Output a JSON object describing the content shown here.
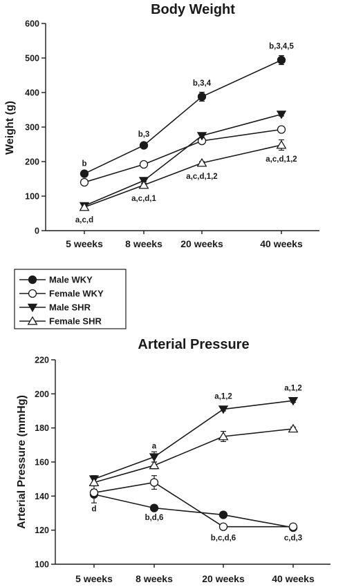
{
  "chart_data": [
    {
      "type": "line",
      "title": "Body Weight",
      "ylabel": "Weight (g)",
      "xlabel": "",
      "categories": [
        "5 weeks",
        "8 weeks",
        "20 weeks",
        "40 weeks"
      ],
      "ylim": [
        0,
        600
      ],
      "yticks": [
        0,
        100,
        200,
        300,
        400,
        500,
        600
      ],
      "grid": false,
      "series": [
        {
          "name": "Male WKY",
          "marker": "filled-circle",
          "values": [
            165,
            247,
            388,
            494
          ],
          "errors": [
            5,
            7,
            13,
            13
          ]
        },
        {
          "name": "Female WKY",
          "marker": "open-circle",
          "values": [
            140,
            192,
            260,
            293
          ],
          "errors": [
            4,
            4,
            5,
            6
          ]
        },
        {
          "name": "Male SHR",
          "marker": "filled-triangle-down",
          "values": [
            72,
            145,
            275,
            337
          ],
          "errors": [
            4,
            4,
            5,
            5
          ]
        },
        {
          "name": "Female SHR",
          "marker": "open-triangle-up",
          "values": [
            68,
            132,
            196,
            248
          ],
          "errors": [
            4,
            5,
            4,
            15
          ]
        }
      ],
      "annotations": [
        {
          "text": "b",
          "category": "5 weeks",
          "y": 187
        },
        {
          "text": "a,c,d",
          "category": "5 weeks",
          "y": 24
        },
        {
          "text": "b,3",
          "category": "8 weeks",
          "y": 272
        },
        {
          "text": "a,c,d,1",
          "category": "8 weeks",
          "y": 86
        },
        {
          "text": "b,3,4",
          "category": "20 weeks",
          "y": 420
        },
        {
          "text": "a,c,d,1,2",
          "category": "20 weeks",
          "y": 150
        },
        {
          "text": "b,3,4,5",
          "category": "40 weeks",
          "y": 527
        },
        {
          "text": "a,c,d,1,2",
          "category": "40 weeks",
          "y": 200
        }
      ]
    },
    {
      "type": "line",
      "title": "Arterial Pressure",
      "ylabel": "Arterial Pressure (mmHg)",
      "xlabel": "",
      "categories": [
        "5 weeks",
        "8 weeks",
        "20 weeks",
        "40 weeks"
      ],
      "ylim": [
        100,
        220
      ],
      "yticks": [
        100,
        120,
        140,
        160,
        180,
        200,
        220
      ],
      "grid": false,
      "series": [
        {
          "name": "Male WKY",
          "marker": "filled-circle",
          "values": [
            141,
            133,
            129,
            121.5
          ],
          "errors": [
            5,
            1,
            1,
            1
          ]
        },
        {
          "name": "Female WKY",
          "marker": "open-circle",
          "values": [
            142,
            148,
            122,
            122
          ],
          "errors": [
            2,
            4,
            1,
            1
          ]
        },
        {
          "name": "Male SHR",
          "marker": "filled-triangle-down",
          "values": [
            150,
            163,
            191,
            196
          ],
          "errors": [
            2,
            3,
            1,
            1
          ]
        },
        {
          "name": "Female SHR",
          "marker": "open-triangle-up",
          "values": [
            148,
            158,
            175,
            179.5
          ],
          "errors": [
            2,
            2,
            3,
            1
          ]
        }
      ],
      "annotations": [
        {
          "text": "d",
          "category": "5 weeks",
          "y": 131
        },
        {
          "text": "a",
          "category": "8 weeks",
          "y": 168
        },
        {
          "text": "b,d,6",
          "category": "8 weeks",
          "y": 126
        },
        {
          "text": "a,1,2",
          "category": "20 weeks",
          "y": 197
        },
        {
          "text": "b,c,d,6",
          "category": "20 weeks",
          "y": 114
        },
        {
          "text": "a,1,2",
          "category": "40 weeks",
          "y": 202
        },
        {
          "text": "c,d,3",
          "category": "40 weeks",
          "y": 114
        }
      ]
    }
  ],
  "legend": {
    "items": [
      {
        "label": "Male WKY",
        "marker": "filled-circle"
      },
      {
        "label": "Female WKY",
        "marker": "open-circle"
      },
      {
        "label": "Male SHR",
        "marker": "filled-triangle-down"
      },
      {
        "label": "Female SHR",
        "marker": "open-triangle-up"
      }
    ]
  }
}
